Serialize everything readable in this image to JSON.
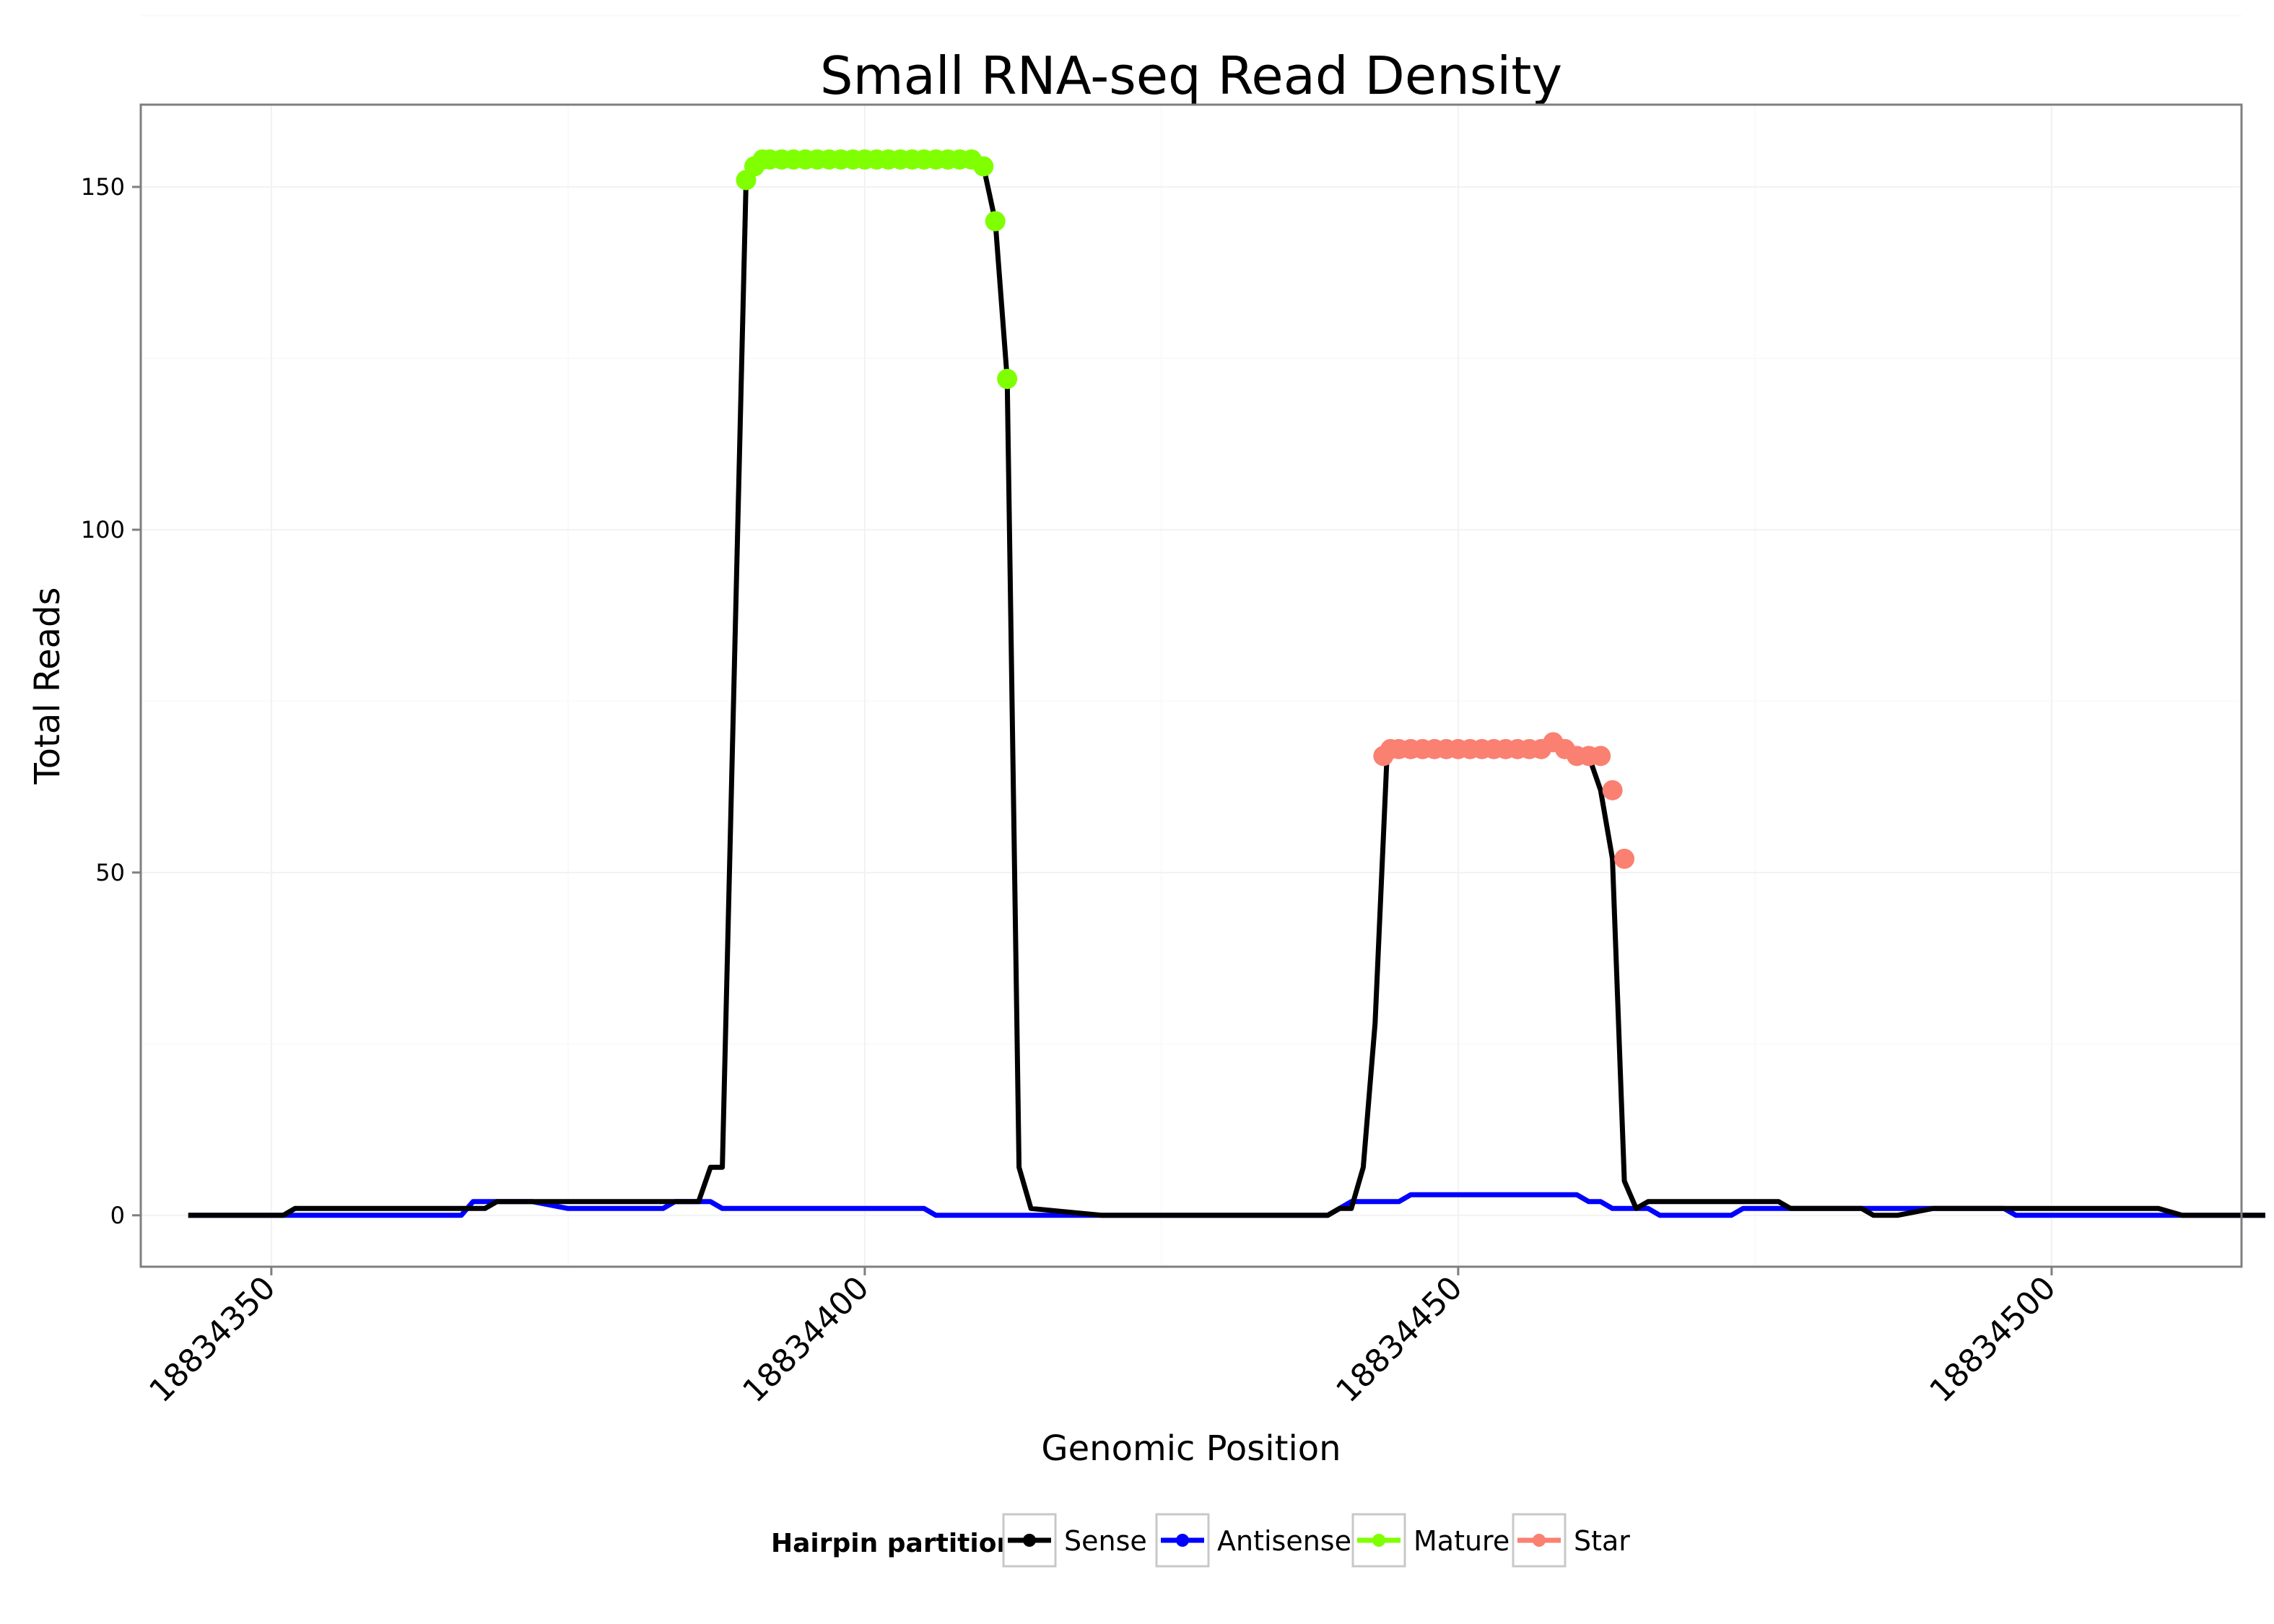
{
  "chart_data": {
    "type": "line",
    "title": "Small RNA-seq Read Density",
    "xlabel": "Genomic Position",
    "ylabel": "Total Reads",
    "xlim": [
      18834339,
      18834516
    ],
    "ylim": [
      -7.5,
      162
    ],
    "x_ticks": [
      18834350,
      18834400,
      18834450,
      18834500
    ],
    "x_tick_labels": [
      "18834350",
      "18834400",
      "18834450",
      "18834500"
    ],
    "y_ticks": [
      0,
      50,
      100,
      150
    ],
    "y_tick_labels": [
      "0",
      "50",
      "100",
      "150"
    ],
    "grid": true,
    "legend": {
      "title": "Hairpin partition",
      "position": "bottom",
      "entries": [
        {
          "name": "Sense",
          "color": "#000000"
        },
        {
          "name": "Antisense",
          "color": "#0000ff"
        },
        {
          "name": "Mature",
          "color": "#7fff00"
        },
        {
          "name": "Star",
          "color": "#fa8072"
        }
      ]
    },
    "series": [
      {
        "name": "Sense",
        "color": "#000000",
        "style": "line",
        "x": [
          18834343,
          18834351,
          18834352,
          18834359,
          18834365,
          18834367,
          18834368,
          18834369,
          18834370,
          18834376,
          18834381,
          18834384,
          18834386,
          18834387,
          18834388,
          18834390,
          18834391,
          18834392,
          18834393,
          18834394,
          18834395,
          18834400,
          18834405,
          18834409,
          18834410,
          18834411,
          18834412,
          18834413,
          18834414,
          18834420,
          18834430,
          18834439,
          18834440,
          18834441,
          18834442,
          18834443,
          18834444,
          18834445,
          18834446,
          18834450,
          18834455,
          18834457,
          18834458,
          18834459,
          18834460,
          18834461,
          18834462,
          18834463,
          18834464,
          18834465,
          18834466,
          18834470,
          18834475,
          18834477,
          18834478,
          18834482,
          18834484,
          18834485,
          18834487,
          18834490,
          18834500,
          18834508,
          18834509,
          18834511,
          18834512,
          18834518
        ],
        "y": [
          0,
          0,
          1,
          1,
          1,
          1,
          1,
          2,
          2,
          2,
          2,
          2,
          2,
          7,
          7,
          151,
          153,
          154,
          154,
          154,
          154,
          154,
          154,
          154,
          153,
          145,
          122,
          7,
          1,
          0,
          0,
          0,
          1,
          1,
          7,
          28,
          67,
          68,
          68,
          68,
          68,
          68,
          69,
          68,
          67,
          67,
          62,
          52,
          5,
          1,
          2,
          2,
          2,
          2,
          1,
          1,
          1,
          0,
          0,
          1,
          1,
          1,
          1,
          0,
          0,
          0
        ]
      },
      {
        "name": "Antisense",
        "color": "#0000ff",
        "style": "line",
        "x": [
          18834343,
          18834366,
          18834367,
          18834370,
          18834371,
          18834372,
          18834375,
          18834383,
          18834384,
          18834386,
          18834387,
          18834388,
          18834400,
          18834405,
          18834406,
          18834410,
          18834414,
          18834420,
          18834430,
          18834439,
          18834440,
          18834441,
          18834445,
          18834446,
          18834449,
          18834450,
          18834455,
          18834460,
          18834461,
          18834462,
          18834463,
          18834465,
          18834466,
          18834467,
          18834470,
          18834473,
          18834474,
          18834475,
          18834480,
          18834487,
          18834490,
          18834496,
          18834497,
          18834500,
          18834510,
          18834512,
          18834518
        ],
        "y": [
          0,
          0,
          2,
          2,
          2,
          2,
          1,
          1,
          2,
          2,
          2,
          1,
          1,
          1,
          0,
          0,
          0,
          0,
          0,
          0,
          1,
          2,
          2,
          3,
          3,
          3,
          3,
          3,
          2,
          2,
          1,
          1,
          1,
          0,
          0,
          0,
          1,
          1,
          1,
          1,
          1,
          1,
          0,
          0,
          0,
          0,
          0
        ]
      },
      {
        "name": "Mature",
        "color": "#7fff00",
        "style": "points",
        "x": [
          18834390,
          18834390.7,
          18834391.4,
          18834392,
          18834393,
          18834394,
          18834395,
          18834396,
          18834397,
          18834398,
          18834399,
          18834400,
          18834401,
          18834402,
          18834403,
          18834404,
          18834405,
          18834406,
          18834407,
          18834408,
          18834409,
          18834410,
          18834411,
          18834412
        ],
        "y": [
          151,
          153,
          154,
          154,
          154,
          154,
          154,
          154,
          154,
          154,
          154,
          154,
          154,
          154,
          154,
          154,
          154,
          154,
          154,
          154,
          154,
          153,
          145,
          122
        ]
      },
      {
        "name": "Star",
        "color": "#fa8072",
        "style": "points",
        "x": [
          18834443.7,
          18834444.3,
          18834445,
          18834446,
          18834447,
          18834448,
          18834449,
          18834450,
          18834451,
          18834452,
          18834453,
          18834454,
          18834455,
          18834456,
          18834457,
          18834458,
          18834459,
          18834460,
          18834461,
          18834462,
          18834463,
          18834464
        ],
        "y": [
          67,
          68,
          68,
          68,
          68,
          68,
          68,
          68,
          68,
          68,
          68,
          68,
          68,
          68,
          68,
          69,
          68,
          67,
          67,
          67,
          62,
          52
        ]
      }
    ]
  }
}
